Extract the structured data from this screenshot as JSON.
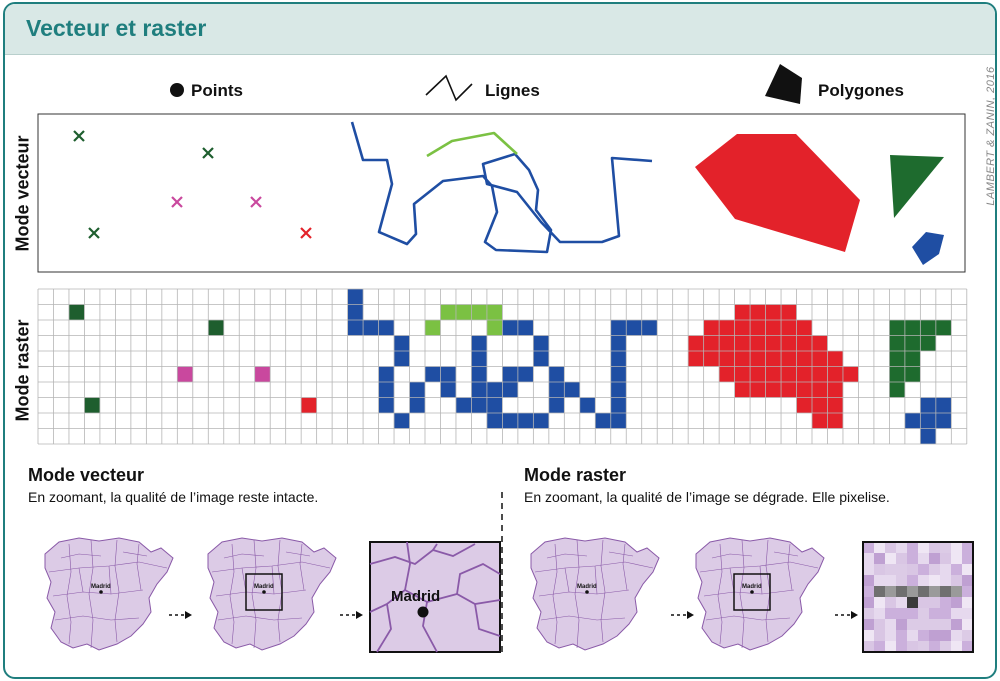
{
  "title": "Vecteur et raster",
  "credit": "LAMBERT & ZANIN, 2016",
  "legend": {
    "points": "Points",
    "lines": "Lignes",
    "polygons": "Polygones"
  },
  "row_labels": {
    "vector": "Mode vecteur",
    "raster": "Mode raster"
  },
  "bottom": {
    "vector": {
      "title": "Mode vecteur",
      "text": "En zoomant, la qualité de l’image reste intacte."
    },
    "raster": {
      "title": "Mode raster",
      "text": "En zoomant, la qualité de l’image se dégrade. Elle pixelise."
    },
    "city": "Madrid"
  },
  "colors": {
    "accent": "#1f7e7e",
    "header_bg": "#d9e8e6",
    "dark_green": "#1e5e2e",
    "magenta": "#c9489e",
    "red": "#e3222a",
    "blue": "#1f4ea3",
    "light_green": "#7bc143",
    "map_fill": "#dccbe6",
    "map_stroke": "#8a5aa8"
  }
}
